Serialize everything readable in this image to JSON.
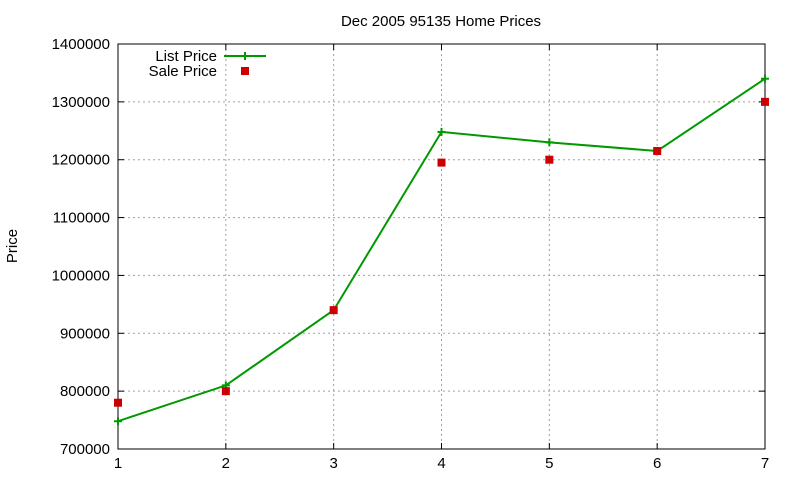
{
  "chart_data": {
    "type": "line",
    "title": "Dec 2005 95135 Home Prices",
    "xlabel": "",
    "ylabel": "Price",
    "x": [
      1,
      2,
      3,
      4,
      5,
      6,
      7
    ],
    "xlim": [
      1,
      7
    ],
    "ylim": [
      700000,
      1400000
    ],
    "xticks": [
      "1",
      "2",
      "3",
      "4",
      "5",
      "6",
      "7"
    ],
    "yticks": [
      "700000",
      "800000",
      "900000",
      "1000000",
      "1100000",
      "1200000",
      "1300000",
      "1400000"
    ],
    "grid": true,
    "legend_position": "top-left",
    "series": [
      {
        "name": "List Price",
        "style": "line-with-plus-markers",
        "color": "#009900",
        "values": [
          748000,
          810000,
          940000,
          1248000,
          1230000,
          1215000,
          1340000
        ]
      },
      {
        "name": "Sale Price",
        "style": "square-markers",
        "color": "#cc0000",
        "values": [
          780000,
          800000,
          940000,
          1195000,
          1200000,
          1215000,
          1300000
        ]
      }
    ]
  }
}
